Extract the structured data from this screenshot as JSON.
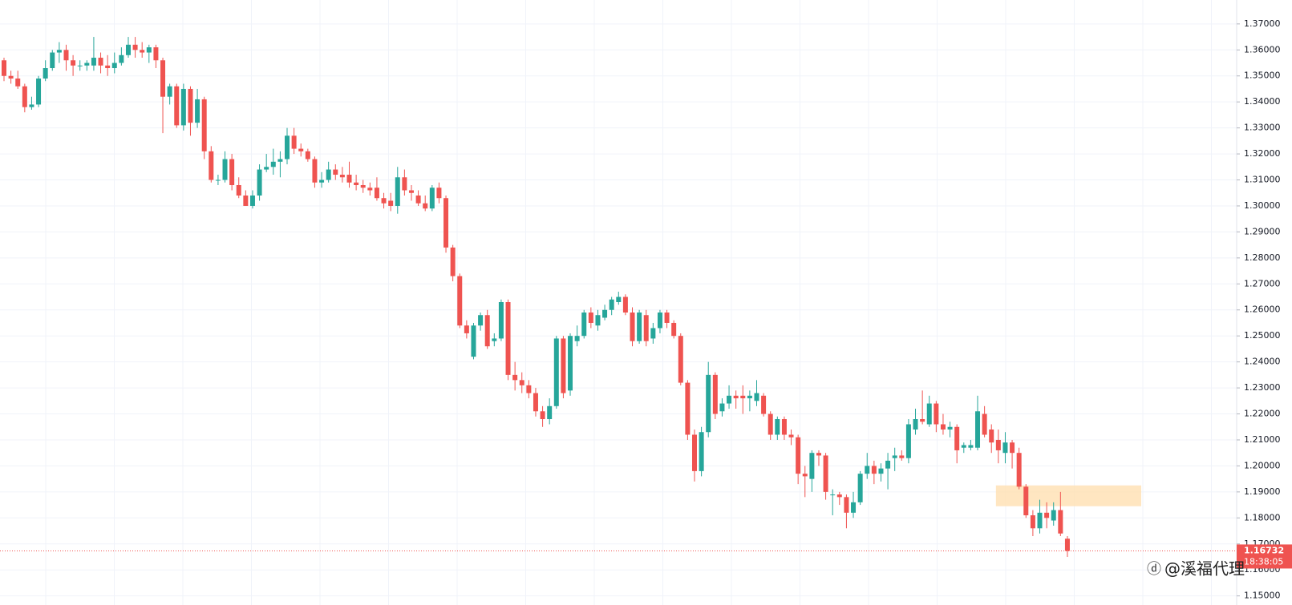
{
  "chart_data": {
    "type": "candlestick",
    "up_color": "#26a69a",
    "down_color": "#ef5350",
    "grid": true,
    "ylim": [
      1.1465,
      1.3792
    ],
    "yticks": [
      {
        "value": 1.15,
        "label": "1.15000"
      },
      {
        "value": 1.16,
        "label": "1.16000"
      },
      {
        "value": 1.17,
        "label": "1.17000"
      },
      {
        "value": 1.18,
        "label": "1.18000"
      },
      {
        "value": 1.19,
        "label": "1.19000"
      },
      {
        "value": 1.2,
        "label": "1.20000"
      },
      {
        "value": 1.21,
        "label": "1.21000"
      },
      {
        "value": 1.22,
        "label": "1.22000"
      },
      {
        "value": 1.23,
        "label": "1.23000"
      },
      {
        "value": 1.24,
        "label": "1.24000"
      },
      {
        "value": 1.25,
        "label": "1.25000"
      },
      {
        "value": 1.26,
        "label": "1.26000"
      },
      {
        "value": 1.27,
        "label": "1.27000"
      },
      {
        "value": 1.28,
        "label": "1.28000"
      },
      {
        "value": 1.29,
        "label": "1.29000"
      },
      {
        "value": 1.3,
        "label": "1.30000"
      },
      {
        "value": 1.31,
        "label": "1.31000"
      },
      {
        "value": 1.32,
        "label": "1.32000"
      },
      {
        "value": 1.33,
        "label": "1.33000"
      },
      {
        "value": 1.34,
        "label": "1.34000"
      },
      {
        "value": 1.35,
        "label": "1.35000"
      },
      {
        "value": 1.36,
        "label": "1.36000"
      },
      {
        "value": 1.37,
        "label": "1.37000"
      }
    ],
    "series": [
      {
        "open": [
          1.356,
          1.35,
          1.349,
          1.346,
          1.338,
          1.339,
          1.349,
          1.353,
          1.359,
          1.36,
          1.356,
          1.354,
          1.354,
          1.354,
          1.357,
          1.354,
          1.353,
          1.355,
          1.358,
          1.362,
          1.36,
          1.359,
          1.361,
          1.356,
          1.342,
          1.346,
          1.331,
          1.345,
          1.332,
          1.341,
          1.321,
          1.31,
          1.31,
          1.318,
          1.308,
          1.304,
          1.3,
          1.304,
          1.314,
          1.315,
          1.317,
          1.318,
          1.327,
          1.322,
          1.321,
          1.318,
          1.309,
          1.31,
          1.314,
          1.312,
          1.312,
          1.309,
          1.308,
          1.307,
          1.307,
          1.303,
          1.302,
          1.3,
          1.311,
          1.306,
          1.304,
          1.301,
          1.299,
          1.307,
          1.303,
          1.284,
          1.273,
          1.254,
          1.242,
          1.254,
          1.258,
          1.248,
          1.249,
          1.263,
          1.235,
          1.233,
          1.231,
          1.228,
          1.221,
          1.218,
          1.223,
          1.249,
          1.229,
          1.248,
          1.25,
          1.259,
          1.254,
          1.257,
          1.26,
          1.263,
          1.265,
          1.259,
          1.248,
          1.258,
          1.249,
          1.253,
          1.259,
          1.255,
          1.25,
          1.232,
          1.212,
          1.198,
          1.213,
          1.235,
          1.221,
          1.224,
          1.227,
          1.227,
          1.226,
          1.225,
          1.227,
          1.22,
          1.212,
          1.218,
          1.212,
          1.211,
          1.197,
          1.195,
          1.205,
          1.204,
          1.189,
          1.189,
          1.188,
          1.182,
          1.186,
          1.197,
          1.2,
          1.197,
          1.199,
          1.203,
          1.204,
          1.203,
          1.214,
          1.218,
          1.216,
          1.224,
          1.216,
          1.214,
          1.215,
          1.207,
          1.207,
          1.207,
          1.22,
          1.214,
          1.21,
          1.205,
          1.209,
          1.205,
          1.192,
          1.181,
          1.176,
          1.182,
          1.179,
          1.183,
          1.172
        ],
        "high": [
          1.357,
          1.352,
          1.352,
          1.347,
          1.342,
          1.35,
          1.356,
          1.36,
          1.363,
          1.362,
          1.358,
          1.356,
          1.356,
          1.365,
          1.359,
          1.358,
          1.359,
          1.361,
          1.365,
          1.365,
          1.363,
          1.362,
          1.362,
          1.357,
          1.347,
          1.347,
          1.347,
          1.346,
          1.345,
          1.342,
          1.323,
          1.312,
          1.321,
          1.32,
          1.311,
          1.306,
          1.306,
          1.316,
          1.32,
          1.322,
          1.321,
          1.33,
          1.33,
          1.324,
          1.322,
          1.319,
          1.313,
          1.317,
          1.316,
          1.315,
          1.317,
          1.312,
          1.31,
          1.309,
          1.311,
          1.305,
          1.305,
          1.315,
          1.314,
          1.308,
          1.306,
          1.304,
          1.308,
          1.309,
          1.304,
          1.285,
          1.274,
          1.256,
          1.255,
          1.259,
          1.26,
          1.251,
          1.264,
          1.264,
          1.24,
          1.236,
          1.233,
          1.23,
          1.223,
          1.226,
          1.25,
          1.25,
          1.251,
          1.254,
          1.26,
          1.261,
          1.26,
          1.262,
          1.265,
          1.267,
          1.266,
          1.261,
          1.26,
          1.26,
          1.255,
          1.26,
          1.26,
          1.256,
          1.251,
          1.233,
          1.214,
          1.215,
          1.24,
          1.236,
          1.226,
          1.231,
          1.229,
          1.231,
          1.229,
          1.233,
          1.228,
          1.221,
          1.219,
          1.219,
          1.214,
          1.212,
          1.2,
          1.206,
          1.206,
          1.205,
          1.191,
          1.19,
          1.189,
          1.19,
          1.198,
          1.205,
          1.202,
          1.201,
          1.205,
          1.207,
          1.206,
          1.218,
          1.222,
          1.229,
          1.227,
          1.225,
          1.22,
          1.217,
          1.216,
          1.209,
          1.21,
          1.227,
          1.223,
          1.216,
          1.214,
          1.213,
          1.21,
          1.207,
          1.193,
          1.183,
          1.187,
          1.186,
          1.186,
          1.19,
          1.173
        ],
        "low": [
          1.348,
          1.347,
          1.345,
          1.336,
          1.337,
          1.338,
          1.348,
          1.352,
          1.355,
          1.352,
          1.35,
          1.352,
          1.352,
          1.352,
          1.351,
          1.35,
          1.351,
          1.354,
          1.357,
          1.357,
          1.357,
          1.355,
          1.353,
          1.328,
          1.339,
          1.33,
          1.329,
          1.327,
          1.33,
          1.318,
          1.309,
          1.308,
          1.309,
          1.306,
          1.303,
          1.3,
          1.299,
          1.302,
          1.313,
          1.312,
          1.311,
          1.316,
          1.32,
          1.319,
          1.317,
          1.307,
          1.307,
          1.309,
          1.31,
          1.309,
          1.307,
          1.306,
          1.305,
          1.304,
          1.302,
          1.299,
          1.298,
          1.297,
          1.304,
          1.302,
          1.3,
          1.298,
          1.298,
          1.301,
          1.282,
          1.271,
          1.253,
          1.249,
          1.241,
          1.252,
          1.245,
          1.246,
          1.248,
          1.233,
          1.229,
          1.228,
          1.226,
          1.219,
          1.215,
          1.216,
          1.222,
          1.226,
          1.227,
          1.246,
          1.249,
          1.253,
          1.252,
          1.256,
          1.258,
          1.262,
          1.258,
          1.246,
          1.247,
          1.246,
          1.247,
          1.251,
          1.253,
          1.249,
          1.231,
          1.21,
          1.194,
          1.196,
          1.211,
          1.218,
          1.219,
          1.222,
          1.222,
          1.22,
          1.221,
          1.223,
          1.219,
          1.21,
          1.21,
          1.21,
          1.208,
          1.193,
          1.188,
          1.19,
          1.2,
          1.187,
          1.181,
          1.185,
          1.176,
          1.18,
          1.185,
          1.195,
          1.193,
          1.194,
          1.191,
          1.198,
          1.202,
          1.201,
          1.212,
          1.216,
          1.215,
          1.213,
          1.212,
          1.211,
          1.201,
          1.205,
          1.206,
          1.206,
          1.211,
          1.205,
          1.201,
          1.201,
          1.199,
          1.191,
          1.18,
          1.173,
          1.174,
          1.176,
          1.177,
          1.173,
          1.165
        ],
        "close": [
          1.35,
          1.349,
          1.346,
          1.338,
          1.339,
          1.349,
          1.353,
          1.359,
          1.36,
          1.356,
          1.354,
          1.354,
          1.355,
          1.357,
          1.354,
          1.353,
          1.355,
          1.358,
          1.362,
          1.36,
          1.359,
          1.361,
          1.356,
          1.342,
          1.346,
          1.331,
          1.345,
          1.332,
          1.341,
          1.321,
          1.31,
          1.31,
          1.318,
          1.308,
          1.304,
          1.3,
          1.304,
          1.314,
          1.315,
          1.317,
          1.318,
          1.327,
          1.322,
          1.321,
          1.318,
          1.309,
          1.31,
          1.314,
          1.312,
          1.311,
          1.309,
          1.308,
          1.307,
          1.306,
          1.303,
          1.301,
          1.3,
          1.311,
          1.306,
          1.305,
          1.301,
          1.299,
          1.307,
          1.303,
          1.284,
          1.273,
          1.254,
          1.251,
          1.254,
          1.258,
          1.246,
          1.249,
          1.263,
          1.235,
          1.233,
          1.231,
          1.228,
          1.221,
          1.218,
          1.223,
          1.249,
          1.228,
          1.25,
          1.25,
          1.259,
          1.255,
          1.258,
          1.26,
          1.264,
          1.265,
          1.259,
          1.248,
          1.259,
          1.248,
          1.253,
          1.259,
          1.255,
          1.25,
          1.232,
          1.212,
          1.198,
          1.213,
          1.235,
          1.22,
          1.224,
          1.227,
          1.226,
          1.226,
          1.227,
          1.228,
          1.22,
          1.212,
          1.218,
          1.212,
          1.211,
          1.197,
          1.196,
          1.205,
          1.204,
          1.19,
          1.189,
          1.188,
          1.182,
          1.186,
          1.197,
          1.2,
          1.197,
          1.199,
          1.202,
          1.204,
          1.203,
          1.216,
          1.218,
          1.217,
          1.224,
          1.216,
          1.214,
          1.215,
          1.206,
          1.208,
          1.208,
          1.221,
          1.212,
          1.209,
          1.206,
          1.209,
          1.205,
          1.192,
          1.181,
          1.176,
          1.182,
          1.18,
          1.183,
          1.174,
          1.16732
        ]
      }
    ],
    "zone": {
      "low": 1.1845,
      "high": 1.1925,
      "color": "#ffe0b2"
    },
    "countdown": "18:38:05",
    "watermark": "@溪福代理"
  }
}
